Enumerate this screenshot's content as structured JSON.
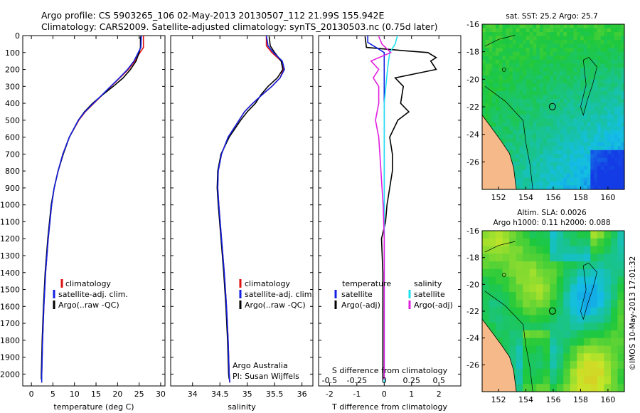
{
  "title_line1": "Argo profile: CS 5903265_106 02-May-2013 20130507_112 21.99S 155.942E",
  "title_line2": "Climatology: CARS2009. Satellite-adjusted climatology: synTS_20130503.nc (0.75d later)",
  "side_stamp": "©IMOS 10-May-2013 17:01:32",
  "colors": {
    "clim": "#e01010",
    "sat": "#1020e0",
    "argo": "#000000",
    "cyan": "#20e0f0",
    "magenta": "#e020e0",
    "land": "#f5b98a"
  },
  "chart_data": [
    {
      "type": "line",
      "xlabel": "temperature (deg C)",
      "xlim": [
        -2,
        31
      ],
      "ylim": [
        2070,
        0
      ],
      "xticks": [
        "0",
        "5",
        "10",
        "15",
        "20",
        "25",
        "30"
      ],
      "yticks": [
        "0",
        "100",
        "200",
        "300",
        "400",
        "500",
        "600",
        "700",
        "800",
        "900",
        "1000",
        "1100",
        "1200",
        "1300",
        "1400",
        "1500",
        "1600",
        "1700",
        "1800",
        "1900",
        "2000"
      ],
      "legend": [
        "climatology",
        "satellite-adj. clim.",
        "Argo(..raw -QC)"
      ],
      "series": [
        {
          "name": "climatology",
          "depth": [
            0,
            70,
            100,
            150,
            200,
            250,
            300,
            350,
            400,
            450,
            500,
            600,
            700,
            800,
            900,
            1000,
            1200,
            1400,
            1600,
            1800,
            2000,
            2050
          ],
          "values": [
            26,
            26,
            25.2,
            24,
            22.5,
            20.5,
            18.5,
            16.5,
            14.5,
            12.5,
            11,
            8.8,
            7.3,
            6.2,
            5.3,
            4.7,
            3.9,
            3.3,
            2.9,
            2.6,
            2.4,
            2.4
          ]
        },
        {
          "name": "satellite-adj. clim.",
          "depth": [
            0,
            70,
            100,
            150,
            200,
            250,
            300,
            350,
            400,
            450,
            500,
            600,
            700,
            800,
            900,
            1000,
            1200,
            1400,
            1600,
            1800,
            2000,
            2050
          ],
          "values": [
            25.5,
            25.4,
            24.8,
            23.8,
            22.3,
            20.4,
            18.4,
            16.4,
            14.4,
            12.4,
            10.9,
            8.8,
            7.3,
            6.2,
            5.3,
            4.7,
            3.9,
            3.3,
            2.9,
            2.6,
            2.4,
            2.4
          ]
        },
        {
          "name": "Argo(..raw -QC)",
          "depth": [
            5,
            70,
            100,
            150,
            200,
            250,
            300,
            350,
            400,
            450,
            500,
            600,
            700,
            800,
            900,
            1000,
            1200,
            1400,
            1600,
            1800,
            2000,
            2030
          ],
          "values": [
            25.3,
            25.3,
            25,
            24.3,
            23,
            21.3,
            19,
            16.5,
            14.2,
            12.3,
            10.9,
            8.8,
            7.4,
            6.2,
            5.3,
            4.6,
            3.8,
            3.2,
            2.8,
            2.5,
            2.3,
            2.3
          ]
        }
      ]
    },
    {
      "type": "line",
      "xlabel": "salinity",
      "xlim": [
        33.6,
        36.2
      ],
      "ylim": [
        2070,
        0
      ],
      "xticks": [
        "34",
        "34.5",
        "35",
        "35.5",
        "36"
      ],
      "legend": [
        "climatology",
        "satellite-adj. clim.",
        "Argo(..raw -QC)"
      ],
      "credit_line1": "Argo Australia",
      "credit_line2": "PI: Susan Wijffels",
      "series": [
        {
          "name": "climatology",
          "depth": [
            0,
            60,
            100,
            150,
            200,
            250,
            300,
            350,
            400,
            450,
            500,
            600,
            700,
            800,
            900,
            1000,
            1200,
            1400,
            1600,
            1800,
            2000,
            2050
          ],
          "values": [
            35.35,
            35.35,
            35.45,
            35.62,
            35.66,
            35.6,
            35.45,
            35.27,
            35.1,
            34.95,
            34.85,
            34.65,
            34.53,
            34.47,
            34.46,
            34.48,
            34.53,
            34.58,
            34.62,
            34.65,
            34.67,
            34.68
          ]
        },
        {
          "name": "satellite-adj. clim.",
          "depth": [
            0,
            60,
            100,
            150,
            200,
            250,
            300,
            350,
            400,
            450,
            500,
            600,
            700,
            800,
            900,
            1000,
            1200,
            1400,
            1600,
            1800,
            2000,
            2050
          ],
          "values": [
            35.35,
            35.38,
            35.48,
            35.64,
            35.68,
            35.6,
            35.45,
            35.27,
            35.1,
            34.95,
            34.85,
            34.65,
            34.53,
            34.47,
            34.46,
            34.48,
            34.53,
            34.58,
            34.62,
            34.65,
            34.67,
            34.68
          ]
        },
        {
          "name": "Argo(..raw -QC)",
          "depth": [
            5,
            60,
            100,
            150,
            200,
            250,
            300,
            350,
            400,
            450,
            500,
            600,
            700,
            800,
            900,
            1000,
            1200,
            1400,
            1600,
            1800,
            2000,
            2030
          ],
          "values": [
            35.4,
            35.42,
            35.5,
            35.62,
            35.65,
            35.55,
            35.38,
            35.25,
            35.15,
            35.0,
            34.88,
            34.67,
            34.52,
            34.46,
            34.45,
            34.47,
            34.52,
            34.57,
            34.61,
            34.64,
            34.66,
            34.67
          ]
        }
      ]
    },
    {
      "type": "line",
      "xlabel": "T difference from climatology",
      "xlabel_top": "S difference from climatology",
      "xlim": [
        -2.4,
        2.8
      ],
      "ylim": [
        2070,
        0
      ],
      "xticks": [
        "-2",
        "-1",
        "0",
        "1",
        "2"
      ],
      "xticks_s": [
        "-0.5",
        "-0.25",
        "0",
        "0.25",
        "0.5"
      ],
      "legend_title_left": "temperature",
      "legend_title_right": "salinity",
      "legend_left": [
        "satellite",
        "Argo(-adj)"
      ],
      "legend_right": [
        "satellite",
        "Argo(-adj)"
      ],
      "series": [
        {
          "name": "temperature satellite",
          "depth": [
            0,
            40,
            70,
            100,
            200,
            2050
          ],
          "values": [
            -0.6,
            -0.6,
            -0.3,
            0,
            0,
            0
          ]
        },
        {
          "name": "temperature Argo(-adj)",
          "depth": [
            5,
            70,
            90,
            100,
            130,
            150,
            200,
            250,
            300,
            400,
            450,
            500,
            600,
            700,
            800,
            900,
            1000,
            1100,
            1200,
            1400,
            1600,
            1800,
            2000,
            2030
          ],
          "values": [
            -0.7,
            -0.65,
            0.8,
            1.6,
            1.9,
            1.7,
            1.9,
            0.4,
            0.7,
            0.6,
            0.9,
            0.5,
            0.2,
            0.3,
            0.3,
            0.2,
            0.1,
            0.05,
            -0.1,
            -0.05,
            -0.05,
            -0.05,
            -0.05,
            -0.05
          ]
        },
        {
          "name": "salinity satellite",
          "depth": [
            0,
            50,
            100,
            200,
            400,
            700,
            1000,
            2050
          ],
          "values": [
            0.12,
            0.1,
            0.05,
            0.03,
            0.0,
            0.0,
            0.0,
            0.0
          ]
        },
        {
          "name": "salinity Argo(-adj)",
          "depth": [
            5,
            50,
            100,
            150,
            200,
            250,
            300,
            400,
            500,
            600,
            700,
            800,
            900,
            1000,
            1200,
            1500,
            2000,
            2030
          ],
          "values": [
            -0.05,
            -0.02,
            0.06,
            -0.12,
            -0.05,
            -0.1,
            -0.05,
            -0.05,
            -0.08,
            -0.05,
            -0.04,
            -0.03,
            -0.02,
            -0.01,
            0,
            0,
            0,
            0
          ]
        }
      ]
    },
    {
      "type": "heatmap",
      "title": "sat. SST: 25.2 Argo: 25.7",
      "xticks": [
        "152",
        "154",
        "156",
        "158",
        "160"
      ],
      "yticks": [
        "-16",
        "-18",
        "-20",
        "-22",
        "-24",
        "-26"
      ]
    },
    {
      "type": "heatmap",
      "title_line1": "Altim. SLA: 0.0026",
      "title_line2": "Argo h1000: 0.11 h2000: 0.088",
      "xticks": [
        "152",
        "154",
        "156",
        "158",
        "160"
      ],
      "yticks": [
        "-16",
        "-18",
        "-20",
        "-22",
        "-24",
        "-26"
      ]
    }
  ]
}
